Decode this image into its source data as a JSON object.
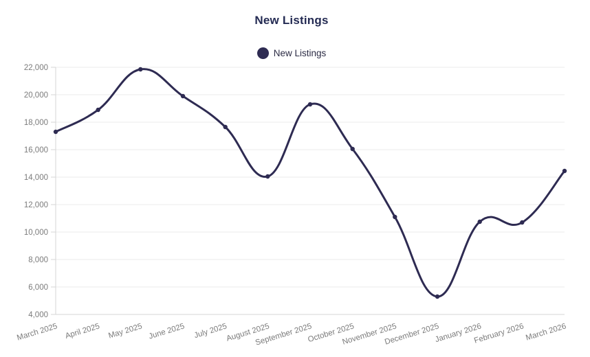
{
  "page": {
    "title": "New Listings"
  },
  "legend": {
    "label": "New Listings",
    "marker_color": "#2e2b52"
  },
  "chart_data": {
    "type": "line",
    "title": "New Listings",
    "categories": [
      "March 2025",
      "April 2025",
      "May 2025",
      "June 2025",
      "July 2025",
      "August 2025",
      "September 2025",
      "October 2025",
      "November 2025",
      "December 2025",
      "January 2026",
      "February 2026",
      "March 2026"
    ],
    "series": [
      {
        "name": "New Listings",
        "color": "#2e2b52",
        "values": [
          17300,
          18900,
          21850,
          19900,
          17650,
          14050,
          19300,
          16050,
          11100,
          5300,
          10750,
          10700,
          14450
        ]
      }
    ],
    "xlabel": "",
    "ylabel": "",
    "ylim": [
      4000,
      22000
    ],
    "ytick_step": 2000,
    "grid": true,
    "legend_position": "top",
    "line_smoothing": "cubic",
    "colors": {
      "grid": "#ebebeb",
      "axis": "#d6d6d6",
      "tick_label": "#7b7b7b"
    }
  }
}
